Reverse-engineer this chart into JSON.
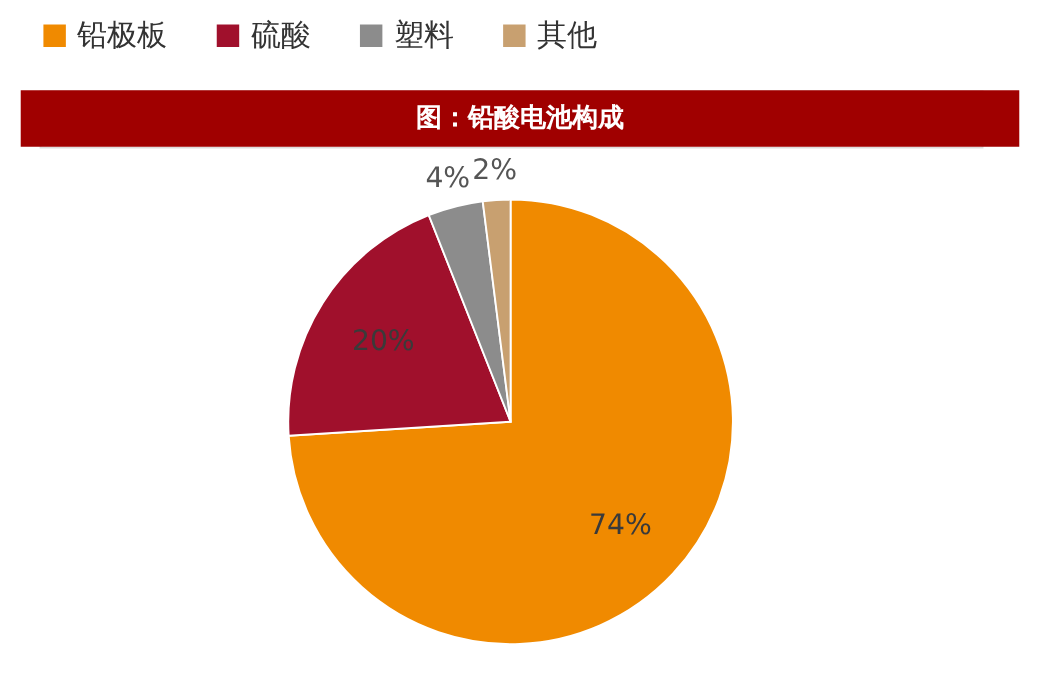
{
  "chart_data": {
    "type": "pie",
    "title": "图：铅酸电池构成",
    "categories": [
      "铅极板",
      "硫酸",
      "塑料",
      "其他"
    ],
    "values": [
      74,
      20,
      4,
      2
    ],
    "value_labels": [
      "74%",
      "20%",
      "4%",
      "2%"
    ],
    "colors": [
      "#f08a00",
      "#a0102c",
      "#8c8c8c",
      "#c8a070"
    ],
    "legend": "top"
  }
}
